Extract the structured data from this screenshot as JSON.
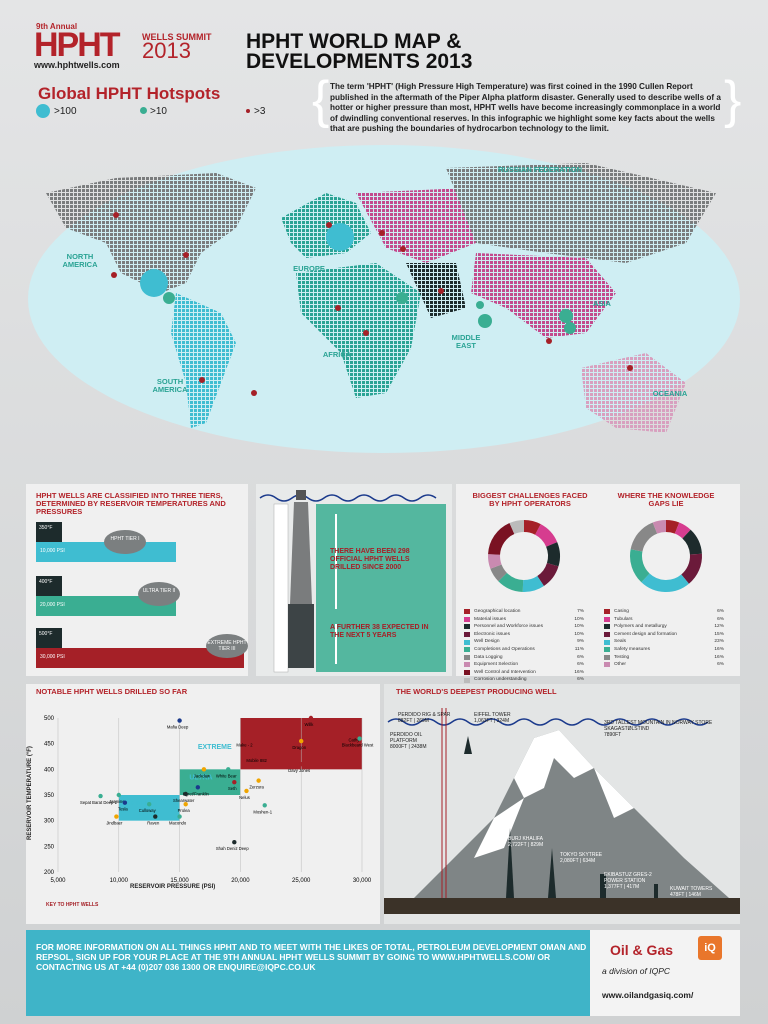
{
  "brand": {
    "annual": "9th Annual",
    "hpht": "HPHT",
    "summit": "WELLS SUMMIT",
    "year": "2013",
    "url": "www.hphtwells.com"
  },
  "title": {
    "line1": "HPHT WORLD MAP &",
    "line2": "DEVELOPMENTS 2013"
  },
  "hotspots": {
    "heading": "Global HPHT Hotspots",
    "legend": [
      ">100",
      ">10",
      ">3"
    ]
  },
  "intro": "The term 'HPHT' (High Pressure High Temperature) was first coined in the 1990 Cullen Report published in the aftermath of the Piper Alpha platform disaster. Generally used to describe wells of a hotter or higher pressure than most, HPHT wells have become increasingly commonplace in a world of dwindling conventional reserves. In this infographic we highlight some key facts about the wells that are pushing the boundaries of hydrocarbon technology to the limit.",
  "regions": [
    "RUSSIAN FEDERATION",
    "NORTH AMERICA",
    "EUROPE",
    "ASIA",
    "MIDDLE EAST",
    "AFRICA",
    "SOUTH AMERICA",
    "OCEANIA"
  ],
  "tiers": {
    "heading": "HPHT WELLS ARE CLASSIFIED INTO THREE TIERS, DETERMINED BY RESERVOIR TEMPERATURES AND PRESSURES",
    "items": [
      {
        "temp": "350°F",
        "psi": "10,000 PSI",
        "badge": "HPHT TIER I",
        "color": "#3fbdd1"
      },
      {
        "temp": "400°F",
        "psi": "20,000 PSI",
        "badge": "ULTRA TIER II",
        "color": "#3aae92"
      },
      {
        "temp": "500°F",
        "psi": "30,000 PSI",
        "badge": "EXTREME HPHT TIER III",
        "color": "#a52027"
      }
    ]
  },
  "wells": {
    "drilled": "THERE HAVE BEEN 298 OFFICIAL HPHT WELLS DRILLED SINCE 2000",
    "expected": "A FURTHER 38 EXPECTED IN THE NEXT 5 YEARS"
  },
  "challenges": {
    "heading": "BIGGEST CHALLENGES FACED BY HPHT OPERATORS",
    "items": [
      {
        "name": "Geographical location",
        "pct": "7%",
        "color": "#a52027"
      },
      {
        "name": "Material issues",
        "pct": "10%",
        "color": "#d63c8f"
      },
      {
        "name": "Personnel and Workforce issues",
        "pct": "10%",
        "color": "#1d2b2c"
      },
      {
        "name": "Electronic issues",
        "pct": "10%",
        "color": "#6b1a3a"
      },
      {
        "name": "Well Design",
        "pct": "9%",
        "color": "#3fbdd1"
      },
      {
        "name": "Completions and Operations",
        "pct": "11%",
        "color": "#3aae92"
      },
      {
        "name": "Data Logging",
        "pct": "6%",
        "color": "#888888"
      },
      {
        "name": "Equipment Selection",
        "pct": "6%",
        "color": "#c98ab0"
      },
      {
        "name": "Well Control and Intervention",
        "pct": "16%",
        "color": "#7a1222"
      },
      {
        "name": "Corrosion understanding",
        "pct": "6%",
        "color": "#bbbbbb"
      }
    ]
  },
  "gaps": {
    "heading": "WHERE THE KNOWLEDGE GAPS LIE",
    "items": [
      {
        "name": "Casing",
        "pct": "6%",
        "color": "#a52027"
      },
      {
        "name": "Tubulars",
        "pct": "6%",
        "color": "#d63c8f"
      },
      {
        "name": "Polymers and metallurgy",
        "pct": "12%",
        "color": "#1d2b2c"
      },
      {
        "name": "Cement design and formation",
        "pct": "15%",
        "color": "#6b1a3a"
      },
      {
        "name": "Seals",
        "pct": "23%",
        "color": "#3fbdd1"
      },
      {
        "name": "Safety measures",
        "pct": "16%",
        "color": "#3aae92"
      },
      {
        "name": "Testing",
        "pct": "16%",
        "color": "#888888"
      },
      {
        "name": "Other",
        "pct": "6%",
        "color": "#c98ab0"
      }
    ]
  },
  "notable": {
    "heading": "NOTABLE HPHT WELLS DRILLED SO FAR",
    "xlabel": "RESERVOIR PRESSURE (PSI)",
    "ylabel": "RESERVOIR TEMPERATURE (°F)",
    "xticks": [
      "5,000",
      "10,000",
      "15,000",
      "20,000",
      "25,000",
      "30,000"
    ],
    "yticks": [
      "500",
      "450",
      "400",
      "350",
      "300",
      "250",
      "200"
    ],
    "zones": [
      "HPHT",
      "ULTRA",
      "EXTREME"
    ],
    "key_title": "KEY TO HPHT WELLS",
    "wells": [
      {
        "name": "Mafia Deep",
        "x": 15000,
        "y": 495,
        "color": "#1b3a8c"
      },
      {
        "name": "Make - 2",
        "x": 20500,
        "y": 460,
        "color": "#a52027"
      },
      {
        "name": "Mobile 882",
        "x": 21500,
        "y": 430,
        "color": "#a52027"
      },
      {
        "name": "Willk",
        "x": 25800,
        "y": 500,
        "color": "#a52027"
      },
      {
        "name": "Dragon",
        "x": 25000,
        "y": 455,
        "color": "#f0a500"
      },
      {
        "name": "Cathy",
        "x": 29500,
        "y": 470,
        "color": "#a52027"
      },
      {
        "name": "Blackbeard West",
        "x": 29800,
        "y": 460,
        "color": "#3aae92"
      },
      {
        "name": "Davy Jones",
        "x": 25000,
        "y": 410,
        "color": "#a52027"
      },
      {
        "name": "Jackdaw",
        "x": 17000,
        "y": 400,
        "color": "#f0a500"
      },
      {
        "name": "White Bear",
        "x": 19000,
        "y": 400,
        "color": "#3aae92"
      },
      {
        "name": "Seth",
        "x": 19500,
        "y": 375,
        "color": "#a52027"
      },
      {
        "name": "Zerzura",
        "x": 21500,
        "y": 378,
        "color": "#f0a500"
      },
      {
        "name": "Egret/Franklin",
        "x": 16500,
        "y": 365,
        "color": "#1b3a8c"
      },
      {
        "name": "Nelus",
        "x": 20500,
        "y": 358,
        "color": "#f0a500"
      },
      {
        "name": "Shearwater",
        "x": 15500,
        "y": 352,
        "color": "#1d2b2c"
      },
      {
        "name": "Sepat Barat Deep-2",
        "x": 8500,
        "y": 348,
        "color": "#3aae92"
      },
      {
        "name": "Jasmine",
        "x": 10000,
        "y": 350,
        "color": "#3aae92"
      },
      {
        "name": "Tesla",
        "x": 10500,
        "y": 335,
        "color": "#1b3a8c"
      },
      {
        "name": "Culloway",
        "x": 12500,
        "y": 332,
        "color": "#3aae92"
      },
      {
        "name": "Prolea",
        "x": 15500,
        "y": 332,
        "color": "#f0a500"
      },
      {
        "name": "Moshen-1",
        "x": 22000,
        "y": 330,
        "color": "#3aae92"
      },
      {
        "name": "Jindbaer",
        "x": 9800,
        "y": 308,
        "color": "#f0a500"
      },
      {
        "name": "Raven",
        "x": 13000,
        "y": 308,
        "color": "#1d2b2c"
      },
      {
        "name": "Macondo",
        "x": 15000,
        "y": 308,
        "color": "#3aae92"
      },
      {
        "name": "Shah Deniz Deep",
        "x": 19500,
        "y": 258,
        "color": "#1d2b2c"
      }
    ]
  },
  "deepest": {
    "heading": "THE WORLD'S DEEPEST PRODUCING WELL",
    "items": [
      {
        "name": "PERDIDO RIG & SPAR",
        "v": "882FT | 269M"
      },
      {
        "name": "EIFFEL TOWER",
        "v": "1,063FT | 324M"
      },
      {
        "name": "PERDIDO OIL PLATFORM",
        "v": "8000FT | 2438M"
      },
      {
        "name": "3RD TALLEST MOUNTAIN IN NORWAY STORE SKAGASTØLSTIND",
        "v": "7890FT"
      },
      {
        "name": "BURJ KHALIFA",
        "v": "2,722FT | 829M"
      },
      {
        "name": "TOKYO SKYTREE",
        "v": "2,080FT | 634M"
      },
      {
        "name": "EKIBASTUZ GRES-2 POWER STATION",
        "v": "1,377FT | 417M"
      },
      {
        "name": "KUWAIT TOWERS",
        "v": "478FT | 146M"
      }
    ]
  },
  "footer": {
    "text": "FOR MORE INFORMATION ON ALL THINGS HPHT AND TO MEET WITH THE LIKES OF TOTAL, PETROLEUM DEVELOPMENT OMAN AND REPSOL, SIGN UP FOR YOUR PLACE AT THE 9TH ANNUAL HPHT WELLS SUMMIT BY GOING TO WWW.HPHTWELLS.COM/ OR CONTACTING US AT +44 (0)207 036 1300 OR ENQUIRE@IQPC.CO.UK",
    "logo": "Oil & Gas",
    "iq": "iQ",
    "division": "a division of IQPC",
    "site": "www.oilandgasiq.com/"
  }
}
